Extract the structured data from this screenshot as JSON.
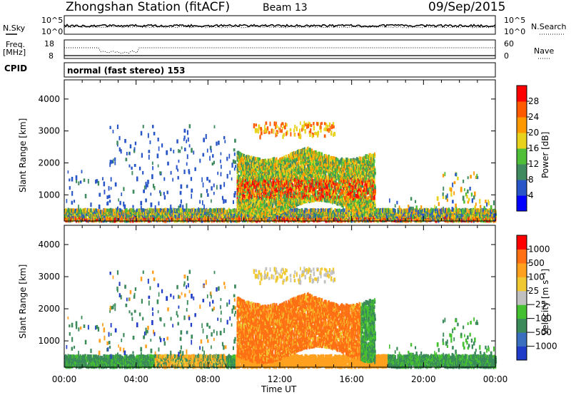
{
  "header": {
    "station_title": "Zhongshan Station (fitACF)",
    "beam": "Beam 13",
    "date": "09/Sep/2015"
  },
  "noise_panel": {
    "left_label": "N.Sky",
    "left_ticks": [
      "10^5",
      "10^0"
    ],
    "right_ticks": [
      "10^5",
      "10^0"
    ],
    "right_label": "N.Search"
  },
  "freq_panel": {
    "left_label_1": "Freq.",
    "left_label_2": "[MHz]",
    "left_ticks": [
      "18",
      "8"
    ],
    "right_ticks": [
      "60",
      "0"
    ],
    "right_label": "Nave"
  },
  "cpid": {
    "label": "CPID",
    "value": "normal (fast stereo) 153"
  },
  "chart_data": [
    {
      "type": "heatmap",
      "name": "Power",
      "ylabel": "Slant Range [km]",
      "xlabel": "Time UT",
      "ylim": [
        180,
        4600
      ],
      "yticks": [
        "1000",
        "2000",
        "3000",
        "4000"
      ],
      "xticks": [
        "00:00",
        "04:00",
        "08:00",
        "12:00",
        "16:00",
        "20:00",
        "00:00"
      ],
      "colorbar": {
        "label": "Power [dB]",
        "ticks": [
          "4",
          "8",
          "12",
          "16",
          "20",
          "24",
          "28"
        ],
        "colors": [
          "#0000ff",
          "#2855c8",
          "#3f8a5e",
          "#4fbf3a",
          "#e8d21e",
          "#ff9900",
          "#ff5a00",
          "#ff0000"
        ]
      },
      "description_regions": [
        {
          "t": [
            0.0,
            24.0
          ],
          "range": [
            200,
            450
          ],
          "level": 6
        },
        {
          "t": [
            9.8,
            17.2
          ],
          "range": [
            600,
            2600
          ],
          "level": 5
        },
        {
          "t": [
            13.2,
            13.8
          ],
          "range": [
            450,
            1200
          ],
          "level": 7
        }
      ]
    },
    {
      "type": "heatmap",
      "name": "Velocity",
      "ylabel": "Slant Range [km]",
      "xlabel": "Time UT",
      "ylim": [
        180,
        4600
      ],
      "yticks": [
        "1000",
        "2000",
        "3000",
        "4000"
      ],
      "xticks": [
        "00:00",
        "04:00",
        "08:00",
        "12:00",
        "16:00",
        "20:00",
        "00:00"
      ],
      "colorbar": {
        "label": "Velocity [m s⁻¹]",
        "ticks": [
          "1000",
          "500",
          "100",
          "25",
          "−25",
          "−100",
          "−500",
          "−1000"
        ],
        "colors": [
          "#1e3cc8",
          "#3a6fc0",
          "#3a8a5a",
          "#45c030",
          "#c0c0c0",
          "#f0c832",
          "#ffa01e",
          "#ff7014",
          "#ff0000"
        ]
      }
    }
  ],
  "xaxis": {
    "label": "Time UT",
    "ticks": [
      "00:00",
      "04:00",
      "08:00",
      "12:00",
      "16:00",
      "20:00",
      "00:00"
    ]
  }
}
